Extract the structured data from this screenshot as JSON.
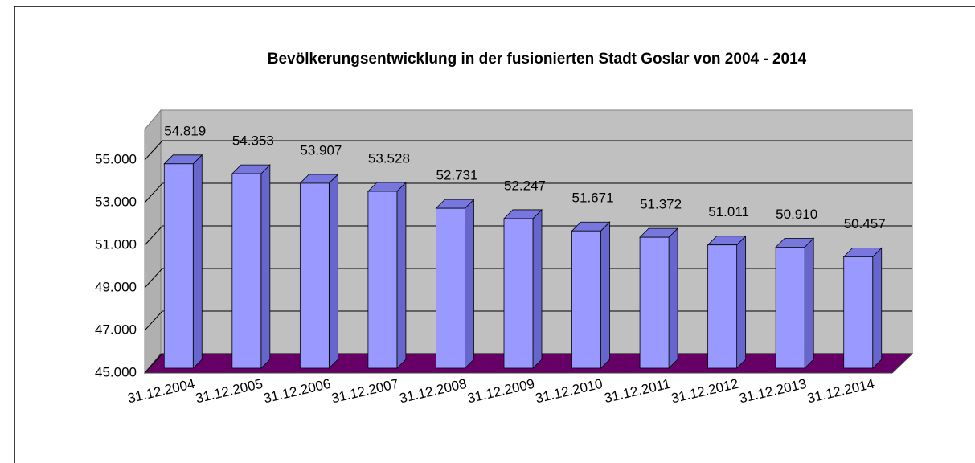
{
  "chart_data": {
    "type": "bar3d",
    "title": "Bevölkerungsentwicklung in der fusionierten Stadt Goslar von 2004 - 2014",
    "categories": [
      "31.12.2004",
      "31.12.2005",
      "31.12.2006",
      "31.12.2007",
      "31.12.2008",
      "31.12.2009",
      "31.12.2010",
      "31.12.2011",
      "31.12.2012",
      "31.12.2013",
      "31.12.2014"
    ],
    "values": [
      54819,
      54353,
      53907,
      53528,
      52731,
      52247,
      51671,
      51372,
      51011,
      50910,
      50457
    ],
    "value_labels": [
      "54.819",
      "54.353",
      "53.907",
      "53.528",
      "52.731",
      "52.247",
      "51.671",
      "51.372",
      "51.011",
      "50.910",
      "50.457"
    ],
    "color": "#9999ff",
    "ylim": [
      45000,
      56500
    ],
    "yticks": [
      {
        "value": 45000,
        "label": "45.000"
      },
      {
        "value": 47000,
        "label": "47.000"
      },
      {
        "value": 49000,
        "label": "49.000"
      },
      {
        "value": 51000,
        "label": "51.000"
      },
      {
        "value": 53000,
        "label": "53.000"
      },
      {
        "value": 55000,
        "label": "55.000"
      }
    ],
    "grid": true
  }
}
